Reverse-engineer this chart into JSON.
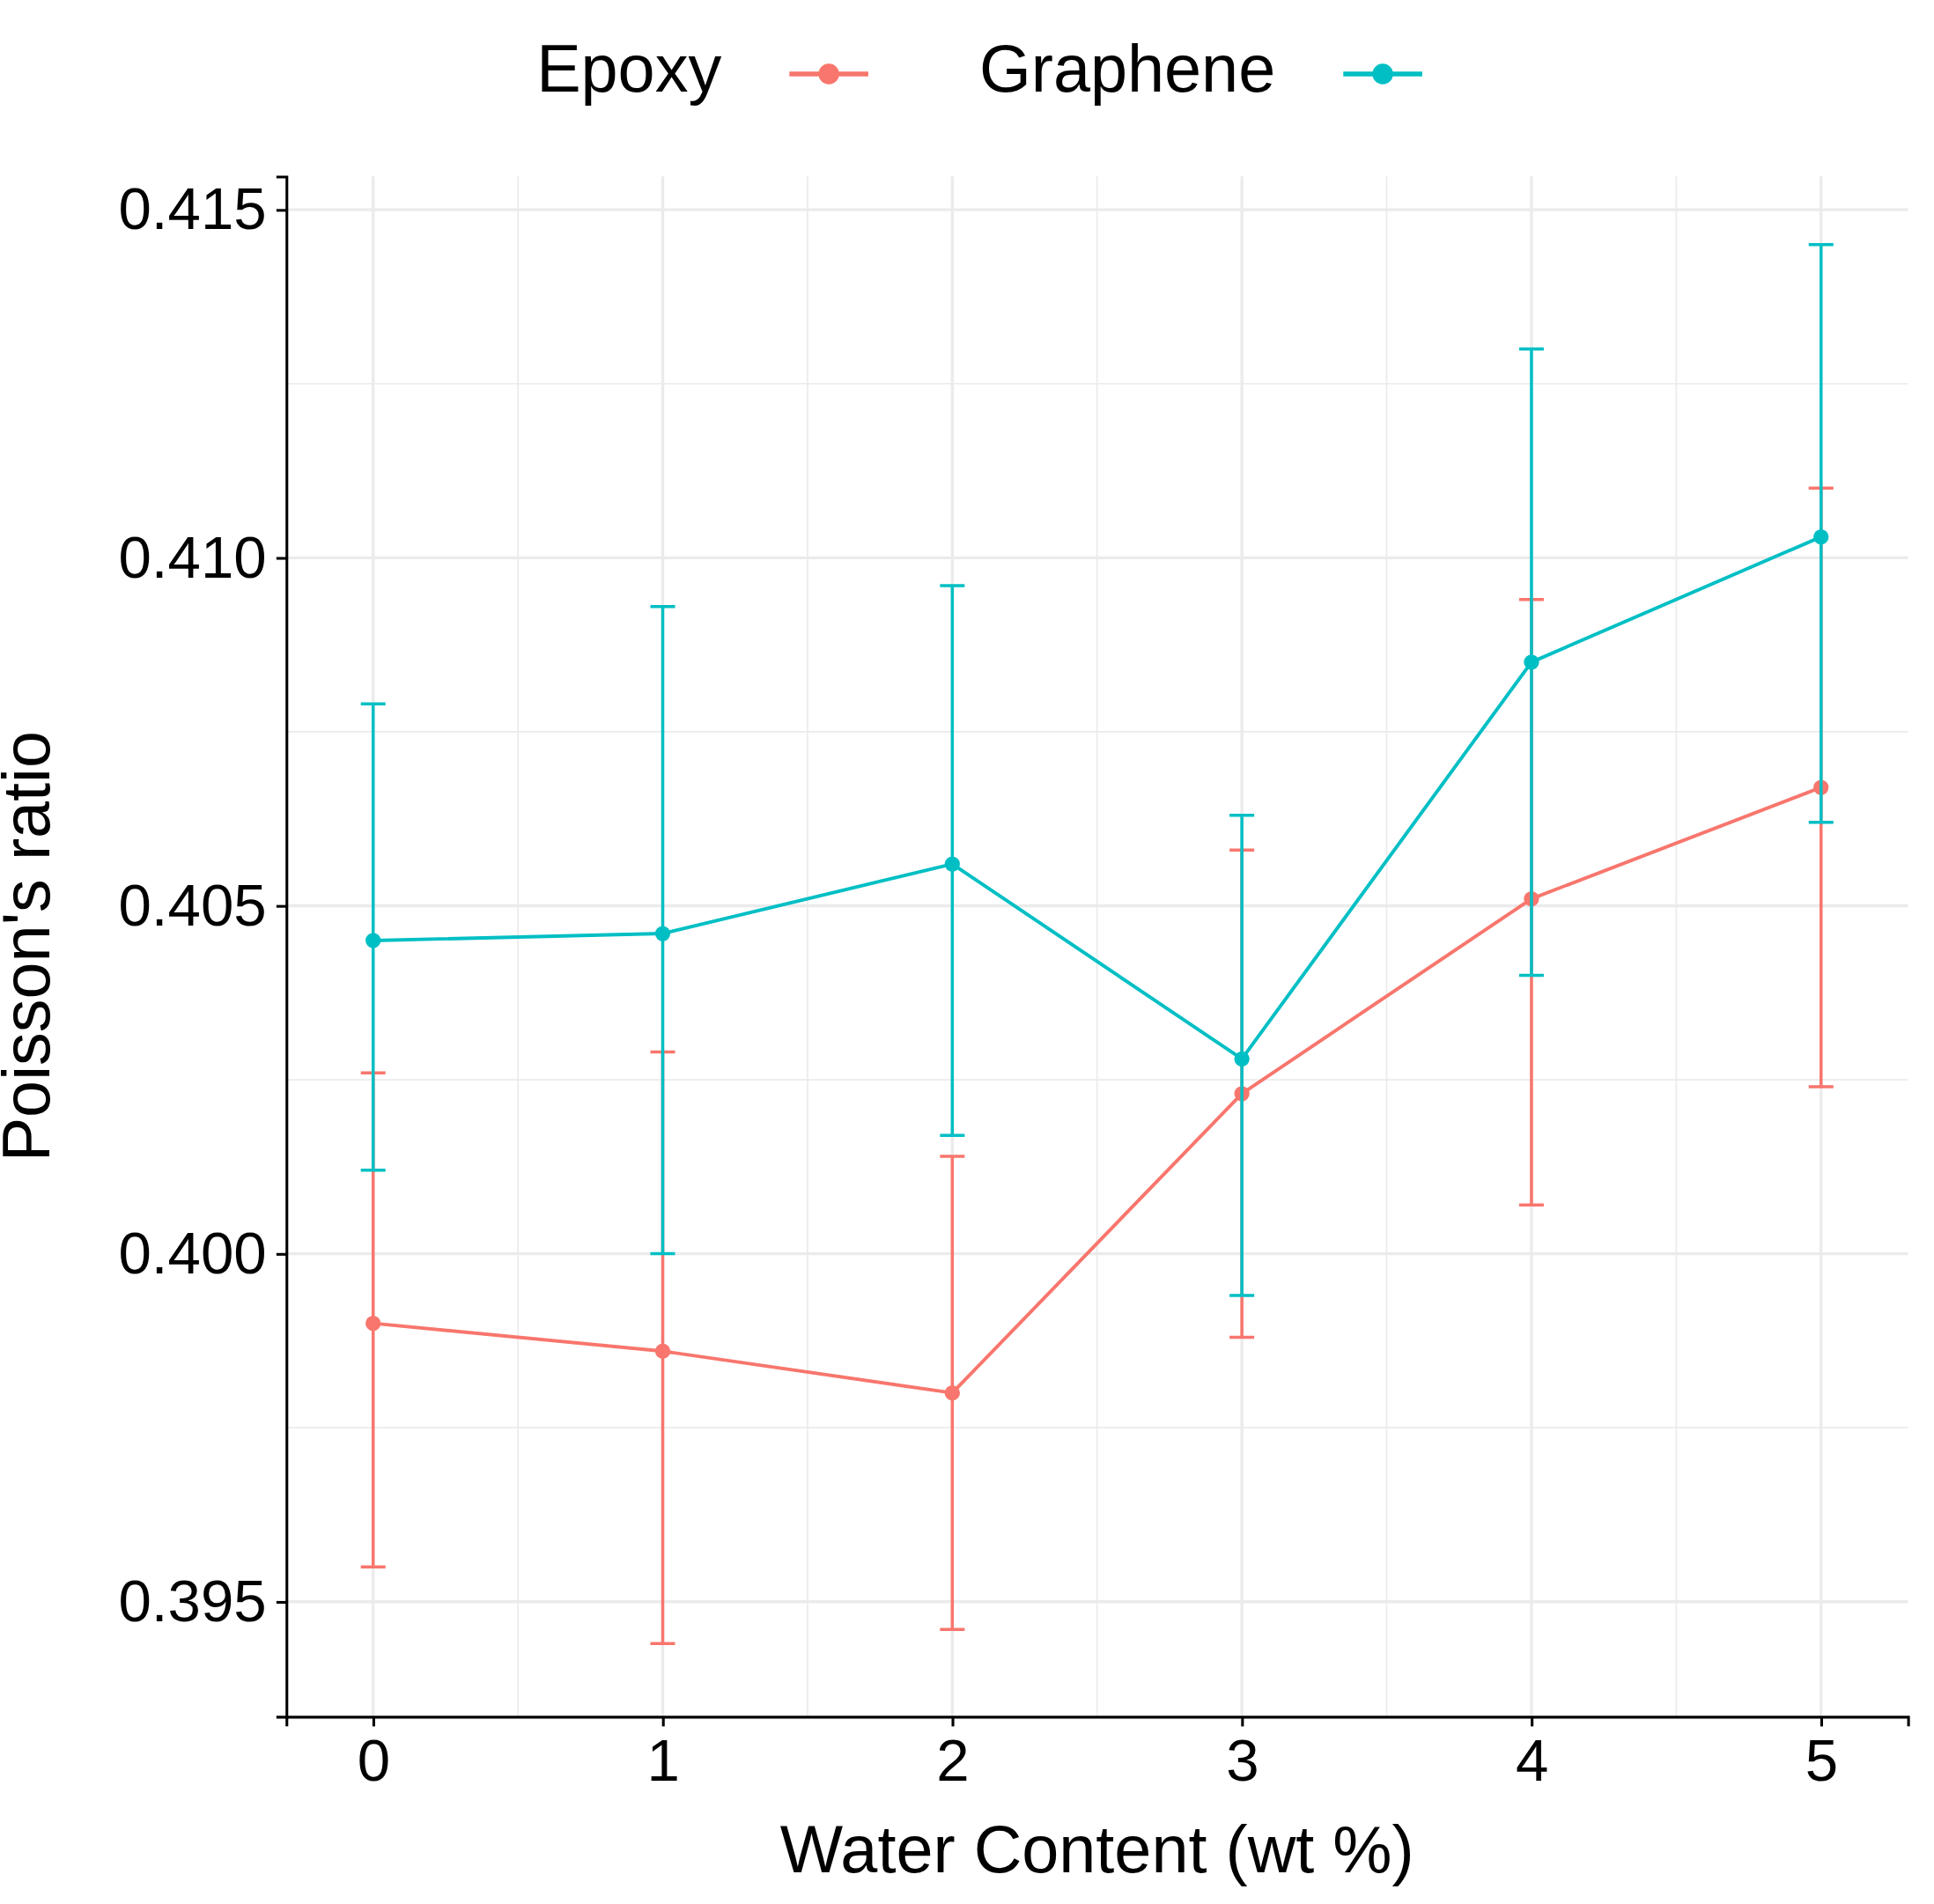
{
  "chart_data": {
    "type": "line",
    "xlabel": "Water Content (wt %)",
    "ylabel": "Poisson's ratio",
    "x": [
      0,
      1,
      2,
      3,
      4,
      5
    ],
    "xlim": [
      -0.3,
      5.3
    ],
    "xticks": [
      0,
      1,
      2,
      3,
      4,
      5
    ],
    "ylim": [
      0.39335,
      0.41548
    ],
    "yticks": [
      {
        "value": 0.395,
        "label": "0.395"
      },
      {
        "value": 0.4,
        "label": "0.400"
      },
      {
        "value": 0.405,
        "label": "0.405"
      },
      {
        "value": 0.41,
        "label": "0.410"
      },
      {
        "value": 0.415,
        "label": "0.415"
      }
    ],
    "grid": true,
    "legend": "top",
    "marker": "circle",
    "line_style": "solid",
    "series": [
      {
        "name": "Epoxy",
        "color": "#f8766d",
        "values": [
          0.399,
          0.3986,
          0.398,
          0.4023,
          0.4051,
          0.4067
        ],
        "errors": [
          [
            0.3955,
            0.4026
          ],
          [
            0.3944,
            0.4029
          ],
          [
            0.3946,
            0.4014
          ],
          [
            0.3988,
            0.4058
          ],
          [
            0.4007,
            0.4094
          ],
          [
            0.4024,
            0.411
          ]
        ]
      },
      {
        "name": "Graphene",
        "color": "#00bfc4",
        "values": [
          0.4045,
          0.4046,
          0.4056,
          0.4028,
          0.4085,
          0.4103
        ],
        "errors": [
          [
            0.4012,
            0.4079
          ],
          [
            0.4,
            0.4093
          ],
          [
            0.4017,
            0.4096
          ],
          [
            0.3994,
            0.4063
          ],
          [
            0.404,
            0.413
          ],
          [
            0.4062,
            0.4145
          ]
        ]
      }
    ]
  }
}
